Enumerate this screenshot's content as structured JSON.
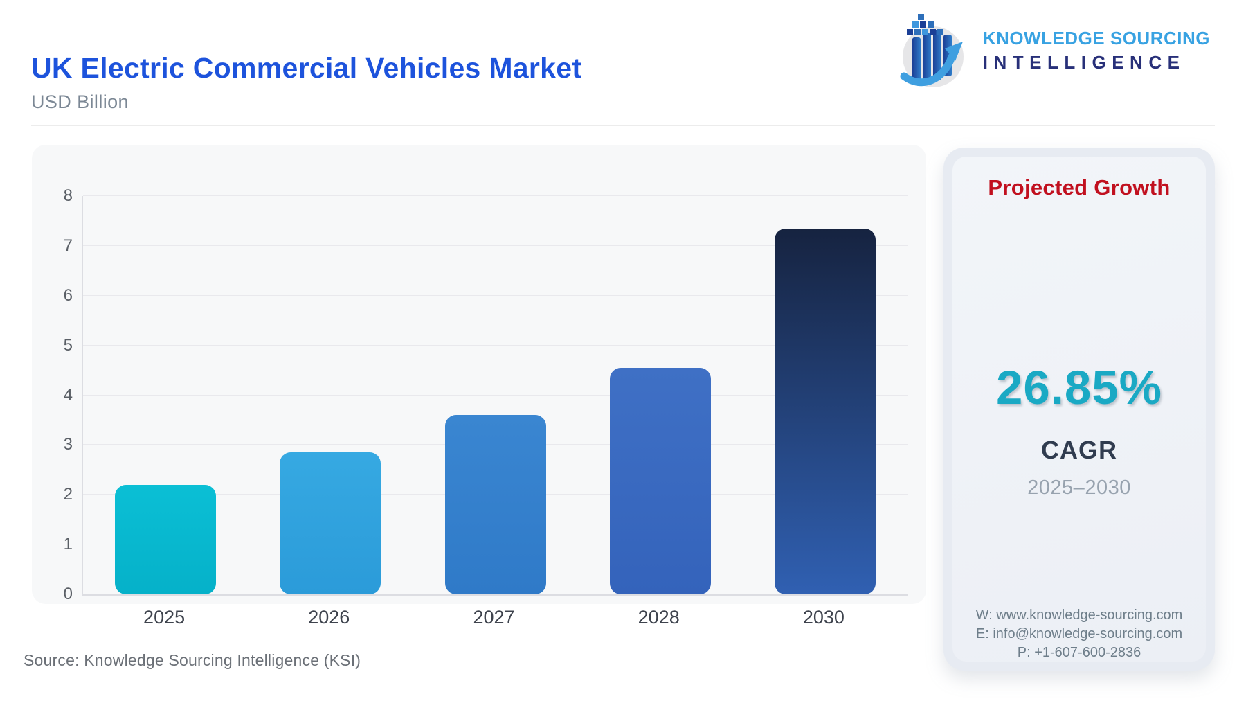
{
  "header": {
    "title": "UK Electric Commercial Vehicles Market",
    "subtitle": "USD Billion",
    "logo": {
      "line1": "KNOWLEDGE SOURCING",
      "line2": "INTELLIGENCE"
    }
  },
  "chart_data": {
    "type": "bar",
    "title": "UK Electric Commercial Vehicles Market",
    "ylabel": "USD Billion",
    "xlabel": "",
    "categories": [
      "2025",
      "2026",
      "2027",
      "2028",
      "2030"
    ],
    "values": [
      2.2,
      2.85,
      3.6,
      4.55,
      7.35
    ],
    "ylim": [
      0,
      8
    ],
    "ytick_step": 1,
    "grid": true,
    "legend": "none",
    "bar_gradients": [
      [
        "#0bbfd5",
        "#05b1c9"
      ],
      [
        "#36a9e2",
        "#2b9bd9"
      ],
      [
        "#3a86d1",
        "#2f7ac8"
      ],
      [
        "#3f70c5",
        "#3463bb"
      ],
      [
        "#162340",
        "#3060b2"
      ]
    ]
  },
  "panel": {
    "heading": "Projected Growth",
    "cagr_value": "26.85%",
    "cagr_label": "CAGR",
    "period": "2025–2030",
    "website": "W: www.knowledge-sourcing.com",
    "email": "E: info@knowledge-sourcing.com",
    "phone": "P: +1-607-600-2836"
  },
  "footer": {
    "source": "Source: Knowledge Sourcing Intelligence (KSI)"
  },
  "colors": {
    "title_blue": "#1d53dc",
    "heading_red": "#c1101f",
    "cagr_teal": "#1aa9c4",
    "logo_light_blue": "#38a2e2",
    "logo_navy": "#283079"
  }
}
